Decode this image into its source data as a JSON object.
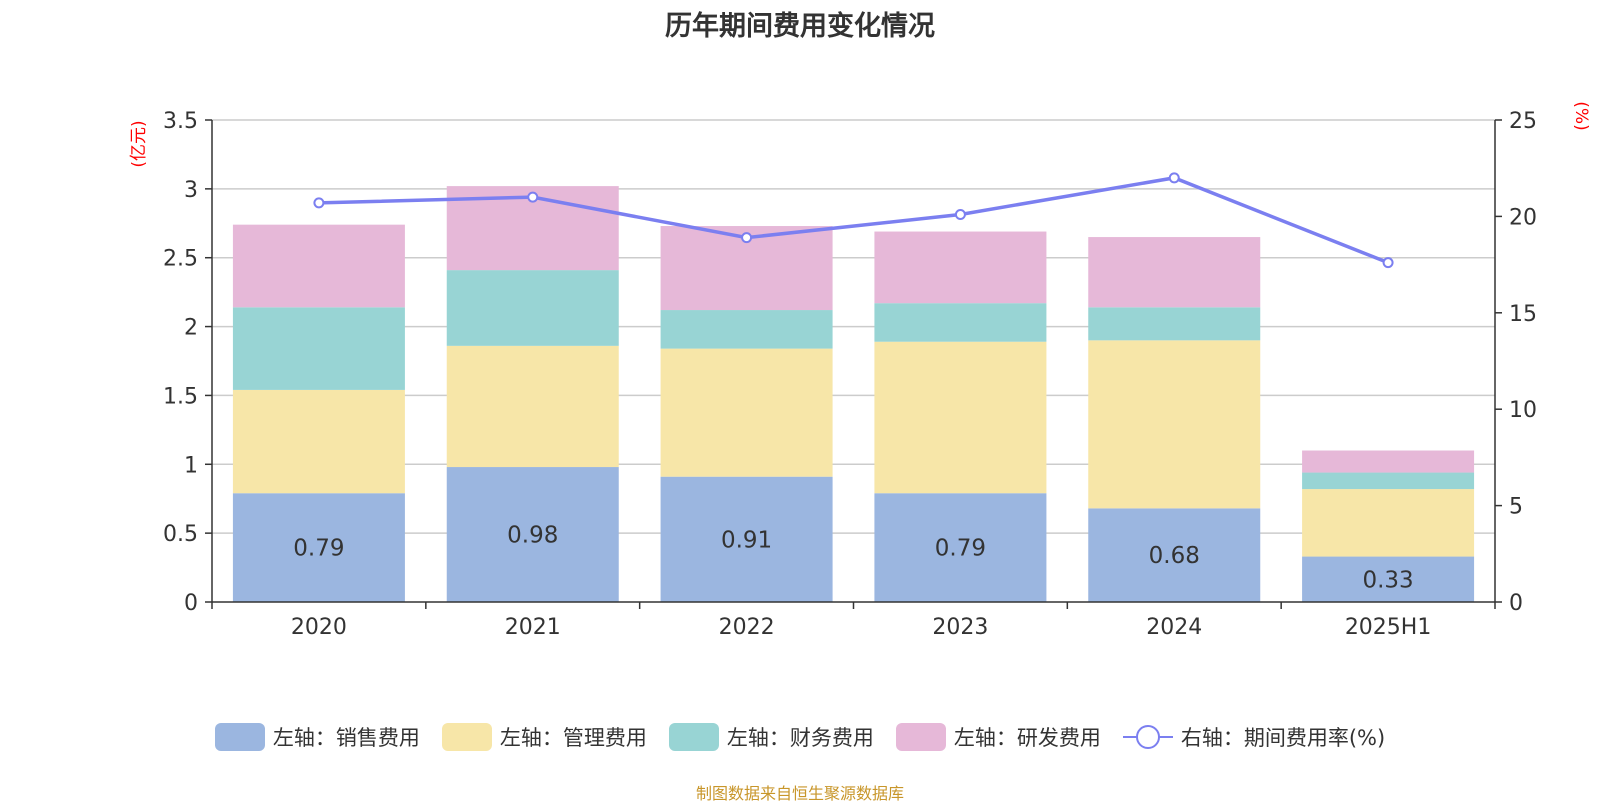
{
  "title": "历年期间费用变化情况",
  "source": "制图数据来自恒生聚源数据库",
  "colors": {
    "sales": "#9bb6e0",
    "admin": "#f7e6a8",
    "finance": "#98d4d4",
    "rnd": "#e6b8d8",
    "rate": "#7b7ff0",
    "unit": "#ff0000",
    "grid": "#cccccc",
    "axis": "#333333",
    "text": "#333333"
  },
  "legend": [
    {
      "key": "sales",
      "label": "左轴：销售费用"
    },
    {
      "key": "admin",
      "label": "左轴：管理费用"
    },
    {
      "key": "finance",
      "label": "左轴：财务费用"
    },
    {
      "key": "rnd",
      "label": "左轴：研发费用"
    },
    {
      "key": "rate",
      "label": "右轴：期间费用率(%)"
    }
  ],
  "chart_data": {
    "type": "bar",
    "stacked": true,
    "title": "历年期间费用变化情况",
    "categories": [
      "2020",
      "2021",
      "2022",
      "2023",
      "2024",
      "2025H1"
    ],
    "left_axis": {
      "unit_label": "(亿元)",
      "ylim": [
        0,
        3.5
      ],
      "ticks": [
        "0",
        "0.5",
        "1",
        "1.5",
        "2",
        "2.5",
        "3",
        "3.5"
      ]
    },
    "right_axis": {
      "unit_label": "(%)",
      "ylim": [
        0,
        25
      ],
      "ticks": [
        "0",
        "5",
        "10",
        "15",
        "20",
        "25"
      ]
    },
    "grid": true,
    "legend_position": "bottom",
    "series": [
      {
        "name": "左轴：销售费用",
        "axis": "left",
        "values": [
          0.79,
          0.98,
          0.91,
          0.79,
          0.68,
          0.33
        ],
        "data_labels": [
          "0.79",
          "0.98",
          "0.91",
          "0.79",
          "0.68",
          "0.33"
        ]
      },
      {
        "name": "左轴：管理费用",
        "axis": "left",
        "values": [
          0.75,
          0.88,
          0.93,
          1.1,
          1.22,
          0.49
        ]
      },
      {
        "name": "左轴：财务费用",
        "axis": "left",
        "values": [
          0.6,
          0.55,
          0.28,
          0.28,
          0.24,
          0.12
        ]
      },
      {
        "name": "左轴：研发费用",
        "axis": "left",
        "values": [
          0.6,
          0.61,
          0.61,
          0.52,
          0.51,
          0.16
        ]
      },
      {
        "name": "右轴：期间费用率(%)",
        "axis": "right",
        "type": "line",
        "values": [
          20.7,
          21.0,
          18.9,
          20.1,
          22.0,
          17.6
        ]
      }
    ]
  }
}
